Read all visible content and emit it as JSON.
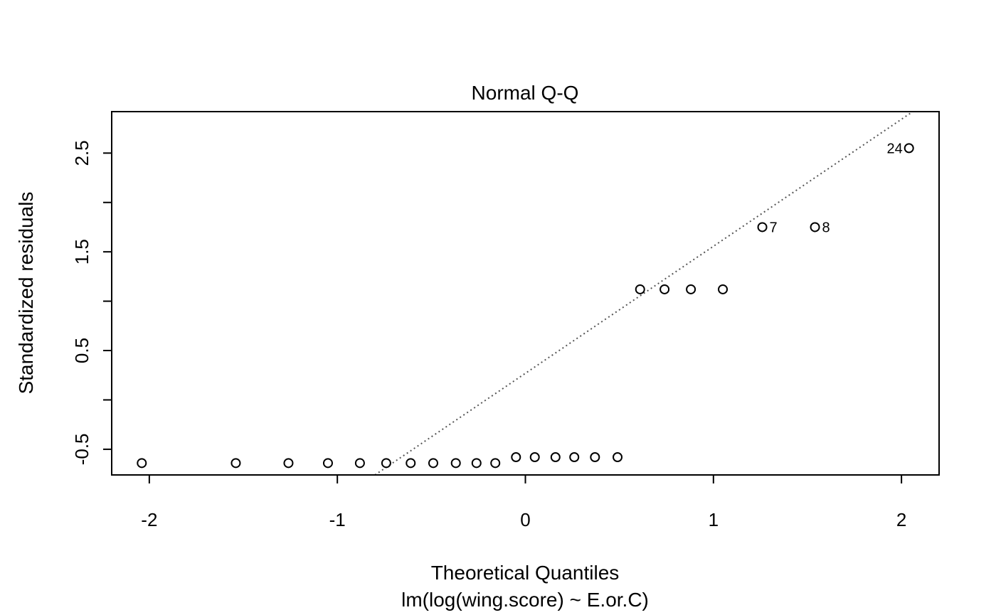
{
  "chart_data": {
    "type": "scatter",
    "title": "Normal Q-Q",
    "xlabel": "Theoretical Quantiles",
    "subtitle": "lm(log(wing.score) ~ E.or.C)",
    "ylabel": "Standardized residuals",
    "xlim": [
      -2.2,
      2.2
    ],
    "ylim": [
      -0.76,
      2.92
    ],
    "x_ticks": [
      -2,
      -1,
      0,
      1,
      2
    ],
    "x_tick_labels": [
      "-2",
      "-1",
      "0",
      "1",
      "2"
    ],
    "y_ticks": [
      -0.5,
      0,
      0.5,
      1,
      1.5,
      2,
      2.5
    ],
    "y_tick_labels": [
      "-0.5",
      "",
      "0.5",
      "",
      "1.5",
      "",
      "2.5"
    ],
    "points": [
      {
        "x": -2.04,
        "y": -0.64
      },
      {
        "x": -1.54,
        "y": -0.64
      },
      {
        "x": -1.26,
        "y": -0.64
      },
      {
        "x": -1.05,
        "y": -0.64
      },
      {
        "x": -0.88,
        "y": -0.64
      },
      {
        "x": -0.74,
        "y": -0.64
      },
      {
        "x": -0.61,
        "y": -0.64
      },
      {
        "x": -0.49,
        "y": -0.64
      },
      {
        "x": -0.37,
        "y": -0.64
      },
      {
        "x": -0.26,
        "y": -0.64
      },
      {
        "x": -0.16,
        "y": -0.64
      },
      {
        "x": -0.05,
        "y": -0.58
      },
      {
        "x": 0.05,
        "y": -0.58
      },
      {
        "x": 0.16,
        "y": -0.58
      },
      {
        "x": 0.26,
        "y": -0.58
      },
      {
        "x": 0.37,
        "y": -0.58
      },
      {
        "x": 0.49,
        "y": -0.58
      },
      {
        "x": 0.61,
        "y": 1.12
      },
      {
        "x": 0.74,
        "y": 1.12
      },
      {
        "x": 0.88,
        "y": 1.12
      },
      {
        "x": 1.05,
        "y": 1.12
      },
      {
        "x": 1.26,
        "y": 1.75,
        "label": "7",
        "label_side": "right"
      },
      {
        "x": 1.54,
        "y": 1.75,
        "label": "8",
        "label_side": "right"
      },
      {
        "x": 2.04,
        "y": 2.55,
        "label": "24",
        "label_side": "left"
      }
    ],
    "reference_line": {
      "style": "dotted",
      "points": [
        [
          -0.8,
          -0.76
        ],
        [
          2.06,
          2.92
        ]
      ]
    },
    "grid": false,
    "legend": "none",
    "colors": {
      "points": "#000000",
      "line": "#555555",
      "frame": "#000000"
    }
  }
}
